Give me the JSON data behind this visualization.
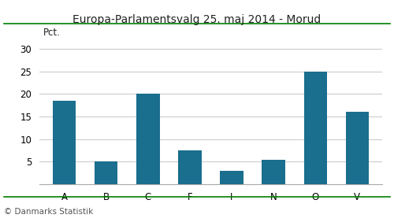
{
  "title": "Europa-Parlamentsvalg 25. maj 2014 - Morud",
  "categories": [
    "A",
    "B",
    "C",
    "F",
    "I",
    "N",
    "O",
    "V"
  ],
  "values": [
    18.6,
    5.0,
    20.0,
    7.5,
    3.0,
    5.5,
    25.0,
    16.1
  ],
  "bar_color": "#1a6e8e",
  "ylabel": "Pct.",
  "ylim": [
    0,
    32
  ],
  "yticks": [
    0,
    5,
    10,
    15,
    20,
    25,
    30
  ],
  "footer": "© Danmarks Statistik",
  "title_color": "#222222",
  "title_fontsize": 10,
  "bar_width": 0.55,
  "background_color": "#ffffff",
  "top_line_color": "#008000",
  "bottom_line_color": "#008000",
  "grid_color": "#cccccc",
  "footer_color": "#555555"
}
